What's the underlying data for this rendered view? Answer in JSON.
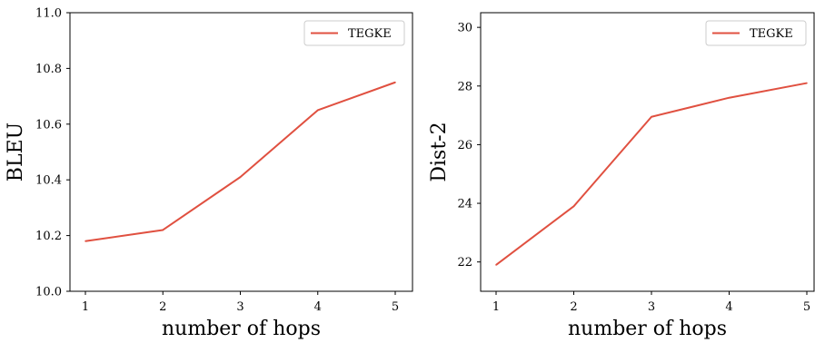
{
  "chart_data": [
    {
      "type": "line",
      "xlabel": "number of hops",
      "ylabel": "BLEU",
      "x": [
        1,
        2,
        3,
        4,
        5
      ],
      "xticks": [
        "1",
        "2",
        "3",
        "4",
        "5"
      ],
      "ylim": [
        10.0,
        11.0
      ],
      "yticks": [
        "10.0",
        "10.2",
        "10.4",
        "10.6",
        "10.8",
        "11.0"
      ],
      "legend_position": "top-right",
      "series": [
        {
          "name": "TEGKE",
          "color": "#e05040",
          "values": [
            10.18,
            10.22,
            10.41,
            10.65,
            10.75
          ]
        }
      ]
    },
    {
      "type": "line",
      "xlabel": "number of hops",
      "ylabel": "Dist-2",
      "x": [
        1,
        2,
        3,
        4,
        5
      ],
      "xticks": [
        "1",
        "2",
        "3",
        "4",
        "5"
      ],
      "ylim": [
        21.0,
        30.5
      ],
      "yticks": [
        "22",
        "24",
        "26",
        "28",
        "30"
      ],
      "legend_position": "top-right",
      "series": [
        {
          "name": "TEGKE",
          "color": "#e05040",
          "values": [
            21.9,
            23.9,
            26.95,
            27.6,
            28.1
          ]
        }
      ]
    }
  ]
}
